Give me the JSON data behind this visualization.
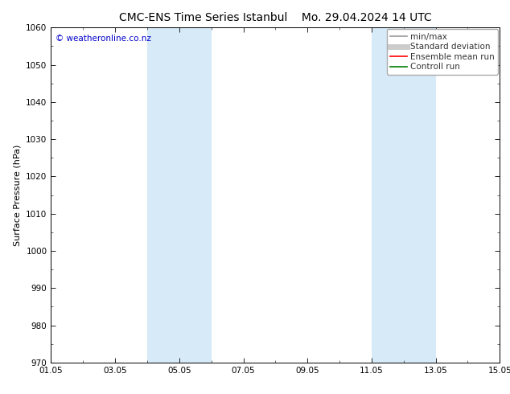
{
  "title": "CMC-ENS Time Series Istanbul",
  "title2": "Mo. 29.04.2024 14 UTC",
  "ylabel": "Surface Pressure (hPa)",
  "ylim": [
    970,
    1060
  ],
  "yticks": [
    970,
    980,
    990,
    1000,
    1010,
    1020,
    1030,
    1040,
    1050,
    1060
  ],
  "xtick_labels": [
    "01.05",
    "03.05",
    "05.05",
    "07.05",
    "09.05",
    "11.05",
    "13.05",
    "15.05"
  ],
  "xtick_positions": [
    0,
    2,
    4,
    6,
    8,
    10,
    12,
    14
  ],
  "xlim": [
    0,
    14
  ],
  "shaded_regions": [
    {
      "xstart": 3.0,
      "xend": 4.0
    },
    {
      "xstart": 4.0,
      "xend": 5.0
    },
    {
      "xstart": 10.0,
      "xend": 11.0
    },
    {
      "xstart": 11.0,
      "xend": 12.0
    }
  ],
  "shaded_color": "#d6eaf8",
  "background_color": "#ffffff",
  "watermark": "© weatheronline.co.nz",
  "watermark_color": "#0000cc",
  "legend_entries": [
    {
      "label": "min/max",
      "color": "#999999",
      "lw": 1.2,
      "style": "-"
    },
    {
      "label": "Standard deviation",
      "color": "#cccccc",
      "lw": 5,
      "style": "-"
    },
    {
      "label": "Ensemble mean run",
      "color": "#ff0000",
      "lw": 1.2,
      "style": "-"
    },
    {
      "label": "Controll run",
      "color": "#008000",
      "lw": 1.2,
      "style": "-"
    }
  ],
  "border_color": "#000000",
  "tick_color": "#000000",
  "grid": false,
  "font_size_title": 10,
  "font_size_axis": 8,
  "font_size_tick": 7.5,
  "font_size_legend": 7.5,
  "font_size_watermark": 7.5
}
